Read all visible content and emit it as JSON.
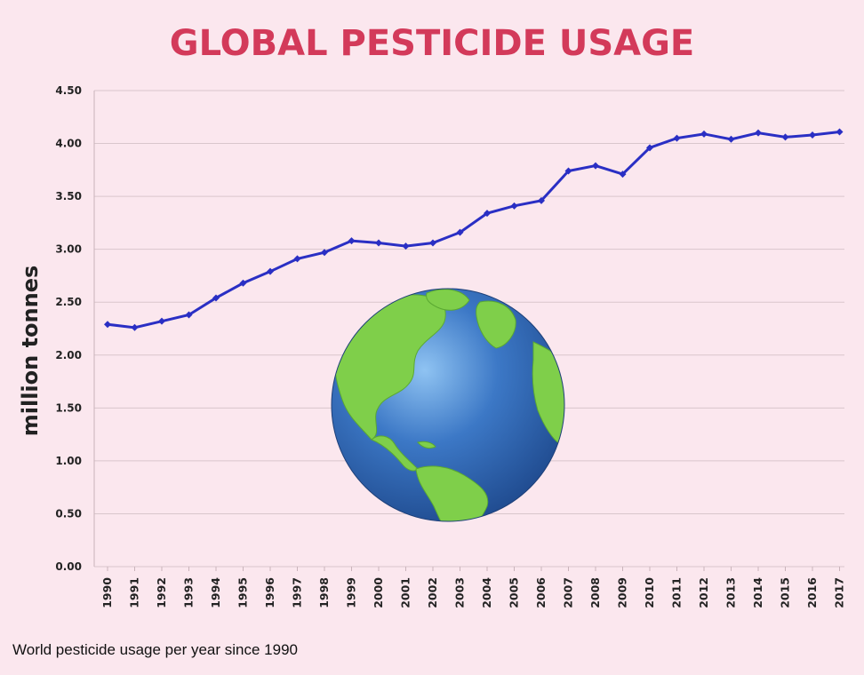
{
  "chart_data": {
    "type": "line",
    "title": "GLOBAL PESTICIDE USAGE",
    "ylabel": "million tonnes",
    "xlabel": "",
    "ylim": [
      0,
      4.5
    ],
    "y_ticks": [
      "0.00",
      "0.50",
      "1.00",
      "1.50",
      "2.00",
      "2.50",
      "3.00",
      "3.50",
      "4.00",
      "4.50"
    ],
    "categories": [
      "1990",
      "1991",
      "1992",
      "1993",
      "1994",
      "1995",
      "1996",
      "1997",
      "1998",
      "1999",
      "2000",
      "2001",
      "2002",
      "2003",
      "2004",
      "2005",
      "2006",
      "2007",
      "2008",
      "2009",
      "2010",
      "2011",
      "2012",
      "2013",
      "2014",
      "2015",
      "2016",
      "2017"
    ],
    "series": [
      {
        "values": [
          2.29,
          2.26,
          2.32,
          2.38,
          2.54,
          2.68,
          2.79,
          2.91,
          2.97,
          3.08,
          3.06,
          3.03,
          3.06,
          3.16,
          3.34,
          3.41,
          3.46,
          3.74,
          3.79,
          3.71,
          3.96,
          4.05,
          4.09,
          4.04,
          4.1,
          4.06,
          4.08,
          4.11
        ],
        "color": "#2a2fc4"
      }
    ],
    "grid": true,
    "legend": "none",
    "caption": "World pesticide usage per year since 1990"
  },
  "decoration": {
    "globe_icon": "earth-globe-icon",
    "ocean_color": "#2f63b0",
    "land_color": "#7fcf4a"
  }
}
